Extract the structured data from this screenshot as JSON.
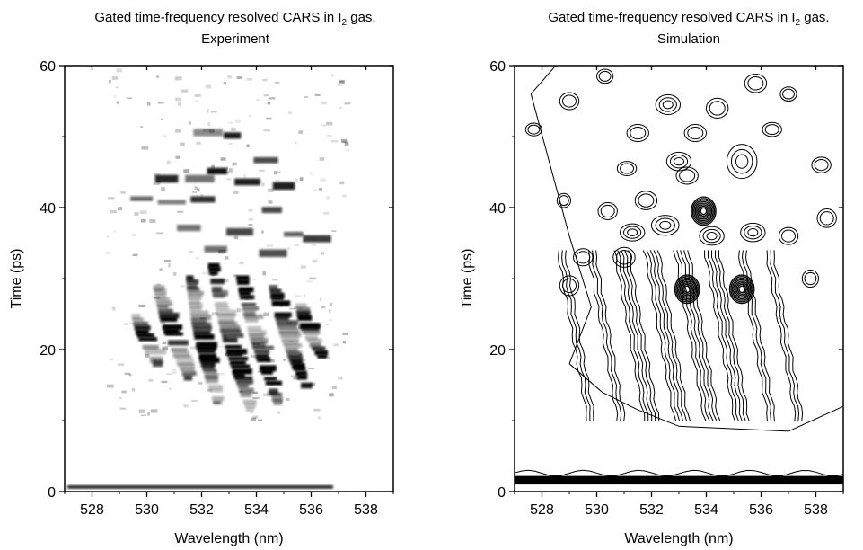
{
  "chart_data": [
    {
      "type": "heatmap",
      "title_main": "Gated time-frequency resolved CARS in I",
      "title_sub": "2",
      "title_end": " gas.",
      "subtitle": "Experiment",
      "xlabel": "Wavelength (nm)",
      "ylabel": "Time (ps)",
      "xlim": [
        527,
        539
      ],
      "ylim": [
        0,
        60
      ],
      "xticks": [
        "528",
        "530",
        "532",
        "534",
        "536",
        "538"
      ],
      "yticks": [
        "0",
        "20",
        "40",
        "60"
      ],
      "colormap": "grayscale (black = high signal)",
      "bands": [
        {
          "x": [
            529.6,
            530.6
          ],
          "y": [
            17.0,
            25.0
          ]
        },
        {
          "x": [
            530.4,
            531.6
          ],
          "y": [
            15.5,
            29.0
          ]
        },
        {
          "x": [
            531.6,
            532.6
          ],
          "y": [
            12.5,
            30.5
          ]
        },
        {
          "x": [
            532.4,
            533.8
          ],
          "y": [
            11.5,
            32.0
          ]
        },
        {
          "x": [
            533.4,
            534.8
          ],
          "y": [
            12.5,
            31.0
          ]
        },
        {
          "x": [
            534.6,
            535.8
          ],
          "y": [
            15.0,
            29.5
          ]
        },
        {
          "x": [
            535.6,
            536.4
          ],
          "y": [
            19.0,
            26.5
          ]
        }
      ]
    },
    {
      "type": "contour",
      "title_main": "Gated time-frequency resolved CARS in I",
      "title_sub": "2",
      "title_end": " gas.",
      "subtitle": "Simulation",
      "xlabel": "Wavelength (nm)",
      "ylabel": "Time (ps)",
      "xlim": [
        527,
        539
      ],
      "ylim": [
        0,
        60
      ],
      "xticks": [
        "528",
        "530",
        "532",
        "534",
        "536",
        "538"
      ],
      "yticks": [
        "0",
        "20",
        "40",
        "60"
      ],
      "peaks": [
        {
          "x": 533.3,
          "y": 28.5
        },
        {
          "x": 535.3,
          "y": 28.5
        },
        {
          "x": 533.9,
          "y": 39.5
        }
      ]
    }
  ]
}
